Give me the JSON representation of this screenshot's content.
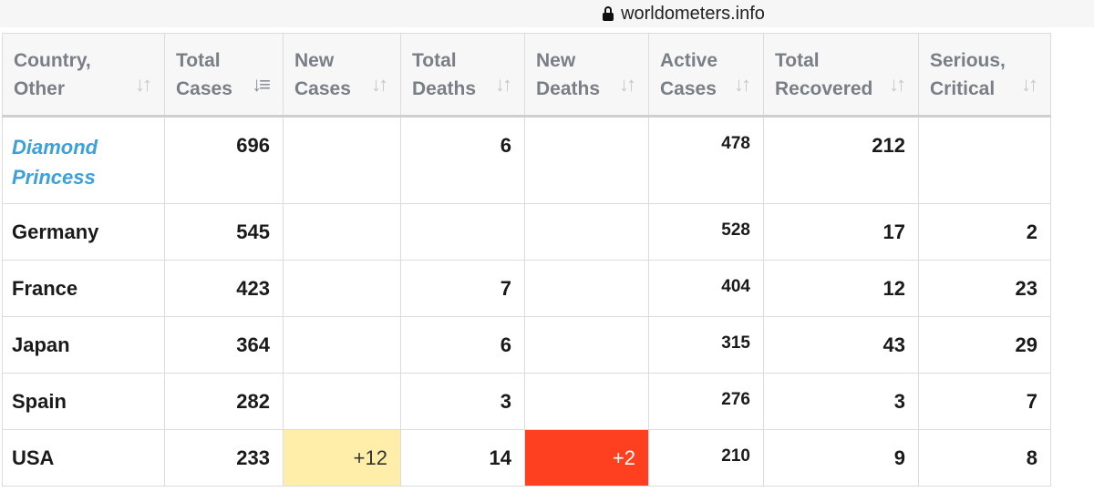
{
  "browser": {
    "url": "worldometers.info"
  },
  "colors": {
    "link": "#3ea0d8",
    "new_cases_highlight": "#ffeeaa",
    "new_deaths_highlight": "#ff4020",
    "header_text": "#7a7f86"
  },
  "table": {
    "headers": [
      {
        "line1": "Country,",
        "line2": "Other"
      },
      {
        "line1": "Total",
        "line2": "Cases"
      },
      {
        "line1": "New",
        "line2": "Cases"
      },
      {
        "line1": "Total",
        "line2": "Deaths"
      },
      {
        "line1": "New",
        "line2": "Deaths"
      },
      {
        "line1": "Active",
        "line2": "Cases"
      },
      {
        "line1": "Total",
        "line2": "Recovered"
      },
      {
        "line1": "Serious,",
        "line2": "Critical"
      }
    ],
    "rows": [
      {
        "country": "Diamond Princess",
        "total_cases": "696",
        "new_cases": "",
        "total_deaths": "6",
        "new_deaths": "",
        "active_cases": "478",
        "total_recovered": "212",
        "serious_critical": ""
      },
      {
        "country": "Germany",
        "total_cases": "545",
        "new_cases": "",
        "total_deaths": "",
        "new_deaths": "",
        "active_cases": "528",
        "total_recovered": "17",
        "serious_critical": "2"
      },
      {
        "country": "France",
        "total_cases": "423",
        "new_cases": "",
        "total_deaths": "7",
        "new_deaths": "",
        "active_cases": "404",
        "total_recovered": "12",
        "serious_critical": "23"
      },
      {
        "country": "Japan",
        "total_cases": "364",
        "new_cases": "",
        "total_deaths": "6",
        "new_deaths": "",
        "active_cases": "315",
        "total_recovered": "43",
        "serious_critical": "29"
      },
      {
        "country": "Spain",
        "total_cases": "282",
        "new_cases": "",
        "total_deaths": "3",
        "new_deaths": "",
        "active_cases": "276",
        "total_recovered": "3",
        "serious_critical": "7"
      },
      {
        "country": "USA",
        "total_cases": "233",
        "new_cases": "+12",
        "total_deaths": "14",
        "new_deaths": "+2",
        "active_cases": "210",
        "total_recovered": "9",
        "serious_critical": "8"
      }
    ]
  }
}
